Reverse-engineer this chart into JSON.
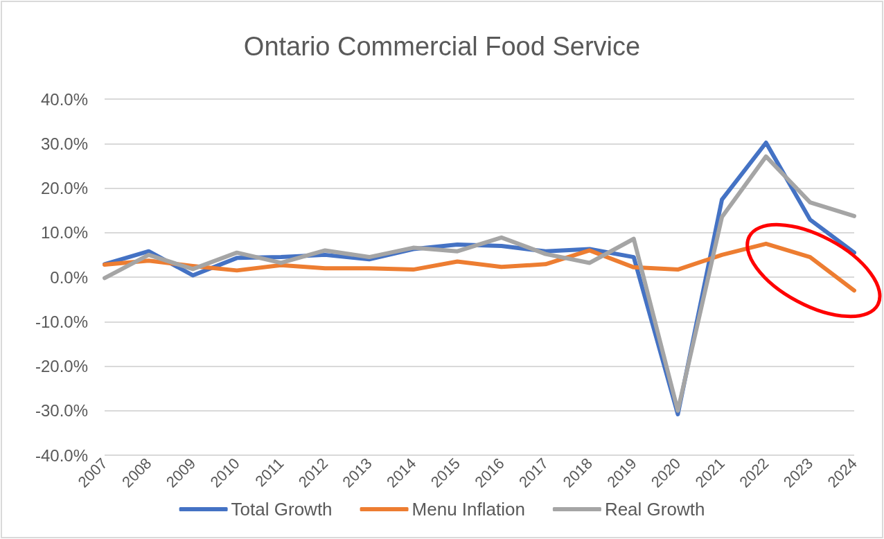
{
  "chart_data": {
    "type": "line",
    "title": "Ontario Commercial Food Service",
    "categories": [
      "2007",
      "2008",
      "2009",
      "2010",
      "2011",
      "2012",
      "2013",
      "2014",
      "2015",
      "2016",
      "2017",
      "2018",
      "2019",
      "2020",
      "2021",
      "2022",
      "2023",
      "2024"
    ],
    "series": [
      {
        "name": "Total Growth",
        "color": "#4472c4",
        "values": [
          2.9,
          5.8,
          0.4,
          4.3,
          4.5,
          5.0,
          4.0,
          6.3,
          7.3,
          7.0,
          5.8,
          6.3,
          4.5,
          -30.8,
          17.4,
          30.2,
          12.9,
          5.5
        ]
      },
      {
        "name": "Menu Inflation",
        "color": "#ed7d31",
        "values": [
          2.8,
          3.7,
          2.5,
          1.5,
          2.7,
          2.0,
          2.0,
          1.7,
          3.5,
          2.3,
          2.9,
          6.0,
          2.2,
          1.7,
          5.0,
          7.5,
          4.5,
          -3.0
        ]
      },
      {
        "name": "Real Growth",
        "color": "#a5a5a5",
        "values": [
          -0.2,
          5.0,
          1.8,
          5.5,
          3.2,
          6.0,
          4.5,
          6.6,
          5.8,
          8.9,
          5.2,
          3.2,
          8.6,
          -30.0,
          13.5,
          27.1,
          16.8,
          13.7
        ]
      }
    ],
    "ylim": [
      -40,
      40
    ],
    "yticks": [
      {
        "value": -40,
        "label": "-40.0%"
      },
      {
        "value": -30,
        "label": "-30.0%"
      },
      {
        "value": -20,
        "label": "-20.0%"
      },
      {
        "value": -10,
        "label": "-10.0%"
      },
      {
        "value": 0,
        "label": "0.0%"
      },
      {
        "value": 10,
        "label": "10.0%"
      },
      {
        "value": 20,
        "label": "20.0%"
      },
      {
        "value": 30,
        "label": "30.0%"
      },
      {
        "value": 40,
        "label": "40.0%"
      }
    ],
    "grid": "y",
    "legend": "bottom",
    "marker": "none",
    "line_style": "solid"
  }
}
